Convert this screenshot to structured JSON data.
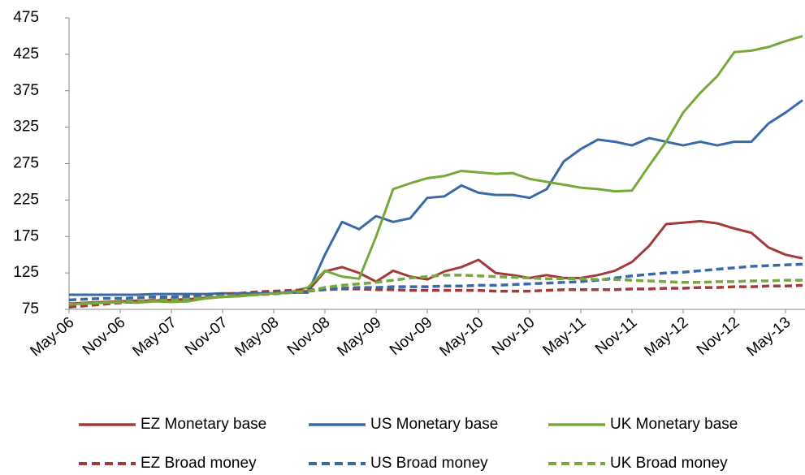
{
  "chart_data": {
    "type": "line",
    "categories": [
      "May-06",
      null,
      null,
      "Nov-06",
      null,
      null,
      "May-07",
      null,
      null,
      "Nov-07",
      null,
      null,
      "May-08",
      null,
      null,
      "Nov-08",
      null,
      null,
      "May-09",
      null,
      null,
      "Nov-09",
      null,
      null,
      "May-10",
      null,
      null,
      "Nov-10",
      null,
      null,
      "May-11",
      null,
      null,
      "Nov-11",
      null,
      null,
      "May-12",
      null,
      null,
      "Nov-12",
      null,
      null,
      "May-13",
      null
    ],
    "series": [
      {
        "name": "EZ Monetary base",
        "color": "#a33a3a",
        "dashed": false,
        "values": [
          83,
          84,
          85,
          86,
          87,
          87,
          88,
          89,
          91,
          92,
          94,
          96,
          97,
          99,
          100,
          127,
          133,
          125,
          113,
          128,
          120,
          116,
          127,
          133,
          143,
          125,
          122,
          118,
          122,
          118,
          118,
          122,
          128,
          140,
          162,
          192,
          194,
          196,
          193,
          186,
          180,
          160,
          150,
          145
        ]
      },
      {
        "name": "US Monetary base",
        "color": "#3a69a8",
        "dashed": false,
        "values": [
          95,
          95,
          95,
          95,
          95,
          96,
          96,
          96,
          96,
          97,
          97,
          97,
          97,
          98,
          98,
          150,
          195,
          185,
          203,
          195,
          200,
          228,
          230,
          245,
          235,
          232,
          232,
          228,
          240,
          278,
          295,
          308,
          305,
          300,
          310,
          305,
          300,
          305,
          300,
          305,
          305,
          330,
          345,
          362
        ]
      },
      {
        "name": "UK Monetary base",
        "color": "#77a83a",
        "dashed": false,
        "values": [
          82,
          83,
          84,
          85,
          84,
          86,
          85,
          86,
          90,
          92,
          93,
          95,
          97,
          99,
          105,
          128,
          120,
          117,
          175,
          240,
          248,
          255,
          258,
          265,
          263,
          261,
          262,
          254,
          250,
          246,
          242,
          240,
          237,
          238,
          272,
          305,
          345,
          372,
          395,
          428,
          430,
          435,
          443,
          450
        ]
      },
      {
        "name": "EZ Broad money",
        "color": "#a33a3a",
        "dashed": true,
        "values": [
          78,
          80,
          82,
          84,
          86,
          88,
          90,
          92,
          94,
          96,
          97,
          99,
          100,
          101,
          102,
          102,
          103,
          103,
          102,
          102,
          101,
          101,
          101,
          101,
          101,
          100,
          100,
          100,
          101,
          102,
          102,
          102,
          102,
          103,
          103,
          104,
          104,
          105,
          105,
          106,
          106,
          107,
          107,
          108
        ]
      },
      {
        "name": "US Broad money",
        "color": "#3a69a8",
        "dashed": true,
        "values": [
          88,
          89,
          90,
          90,
          91,
          92,
          92,
          93,
          94,
          95,
          96,
          97,
          98,
          99,
          100,
          102,
          104,
          105,
          105,
          106,
          106,
          106,
          107,
          107,
          108,
          108,
          109,
          110,
          111,
          112,
          113,
          115,
          118,
          121,
          123,
          125,
          126,
          128,
          130,
          132,
          134,
          135,
          136,
          137
        ]
      },
      {
        "name": "UK Broad money",
        "color": "#77a83a",
        "dashed": true,
        "values": [
          82,
          83,
          84,
          85,
          86,
          87,
          88,
          89,
          91,
          93,
          94,
          95,
          96,
          98,
          100,
          105,
          108,
          110,
          112,
          115,
          118,
          120,
          122,
          122,
          121,
          120,
          119,
          118,
          117,
          117,
          117,
          116,
          116,
          115,
          114,
          113,
          112,
          112,
          113,
          113,
          114,
          114,
          115,
          115
        ]
      }
    ],
    "ylim": [
      75,
      475
    ],
    "yticks": [
      75,
      125,
      175,
      225,
      275,
      325,
      375,
      425,
      475
    ],
    "grid": false
  }
}
